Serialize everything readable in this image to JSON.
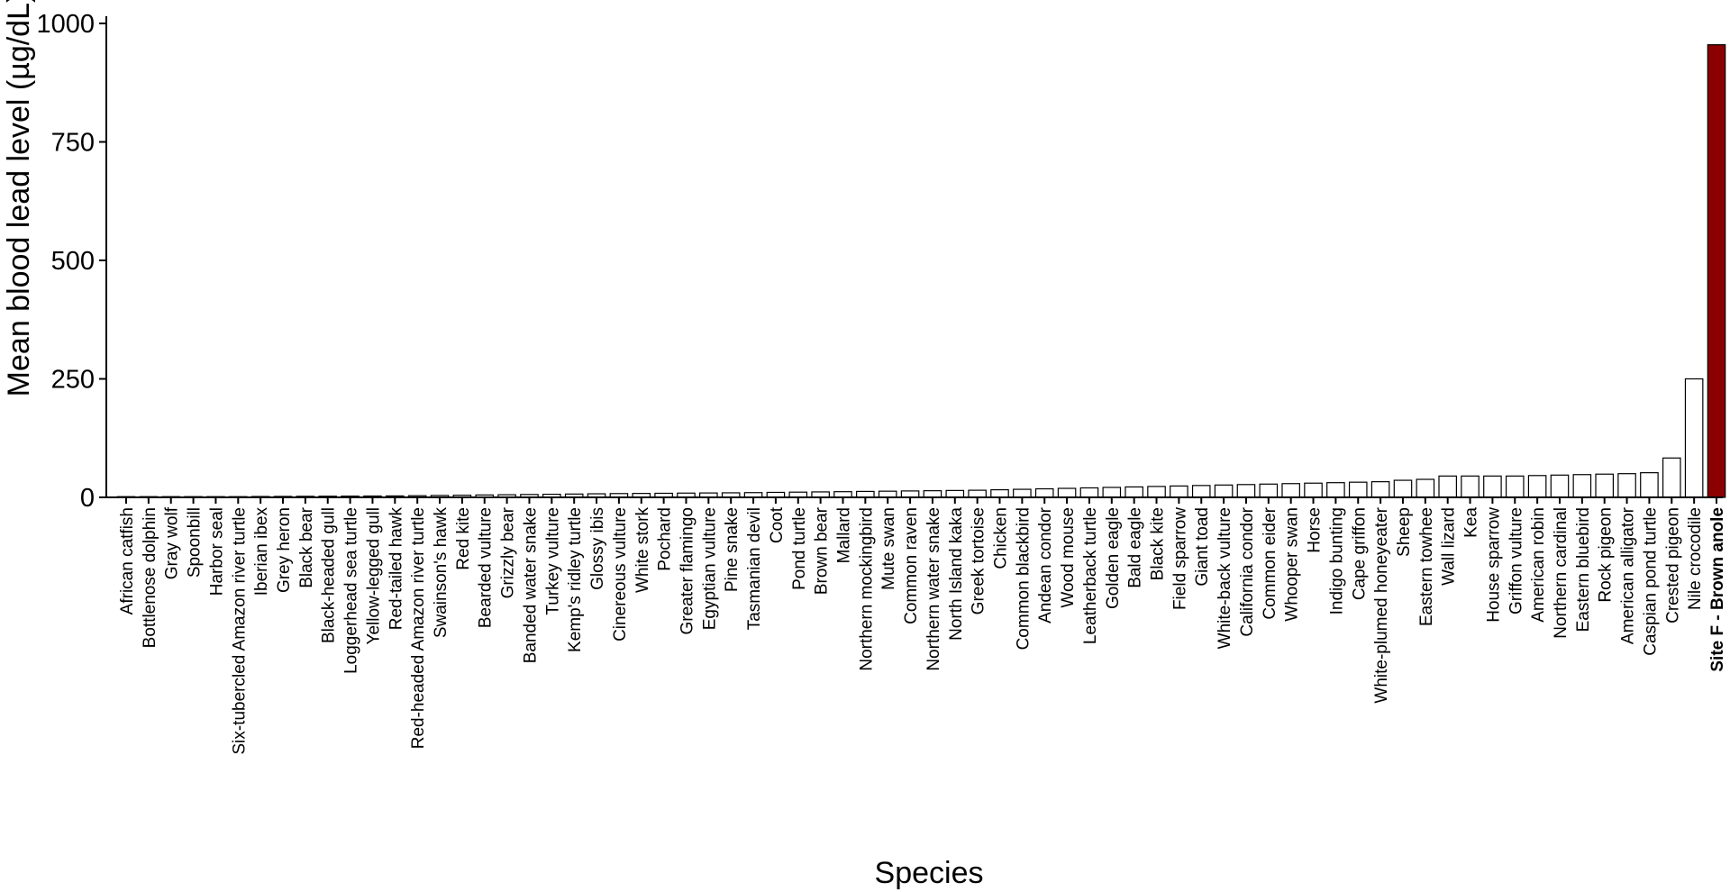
{
  "chart_data": {
    "type": "bar",
    "title": "",
    "xlabel": "Species",
    "ylabel": "Mean blood lead level (µg/dL)",
    "ylim": [
      0,
      1000
    ],
    "yticks": [
      0,
      250,
      500,
      750,
      1000
    ],
    "grid": false,
    "legend": "none",
    "colors": {
      "default_bar": "#ffffff",
      "highlight_bar": "#8b0000",
      "outline": "#000000"
    },
    "highlight_category": "Site F - Brown anole",
    "categories": [
      "African catfish",
      "Bottlenose dolphin",
      "Gray wolf",
      "Spoonbill",
      "Harbor seal",
      "Six-tubercled Amazon river turtle",
      "Iberian ibex",
      "Grey heron",
      "Black bear",
      "Black-headed gull",
      "Loggerhead sea turtle",
      "Yellow-legged gull",
      "Red-tailed hawk",
      "Red-headed Amazon river turtle",
      "Swainson's hawk",
      "Red kite",
      "Bearded vulture",
      "Grizzly bear",
      "Banded water snake",
      "Turkey vulture",
      "Kemp's ridley turtle",
      "Glossy ibis",
      "Cinereous vulture",
      "White stork",
      "Pochard",
      "Greater flamingo",
      "Egyptian vulture",
      "Pine snake",
      "Tasmanian devil",
      "Coot",
      "Pond turtle",
      "Brown bear",
      "Mallard",
      "Northern mockingbird",
      "Mute swan",
      "Common raven",
      "Northern water snake",
      "North Island kaka",
      "Greek tortoise",
      "Chicken",
      "Common blackbird",
      "Andean condor",
      "Wood mouse",
      "Leatherback turtle",
      "Golden eagle",
      "Bald eagle",
      "Black kite",
      "Field sparrow",
      "Giant toad",
      "White-back vulture",
      "California condor",
      "Common eider",
      "Whooper swan",
      "Horse",
      "Indigo bunting",
      "Cape griffon",
      "White-plumed honeyeater",
      "Sheep",
      "Eastern towhee",
      "Wall lizard",
      "Kea",
      "House sparrow",
      "Griffon vulture",
      "American robin",
      "Northern cardinal",
      "Eastern bluebird",
      "Rock pigeon",
      "American alligator",
      "Caspian pond turtle",
      "Crested pigeon",
      "Nile crocodile",
      "Site F - Brown anole"
    ],
    "values": [
      0.5,
      0.7,
      0.8,
      1,
      1.2,
      1.5,
      1.8,
      2,
      2.2,
      2.4,
      2.6,
      2.8,
      3,
      3.5,
      4,
      4.5,
      5,
      5.5,
      6,
      6.5,
      7,
      7.5,
      8,
      8.3,
      8.6,
      9,
      9.3,
      9.6,
      10,
      10.5,
      11,
      11.5,
      12,
      12.5,
      13,
      13.5,
      14,
      14.5,
      15,
      16,
      17,
      18,
      19,
      20,
      21,
      22,
      23,
      24,
      25,
      26,
      27,
      28,
      29,
      30,
      31,
      32,
      33,
      36,
      38,
      45,
      45,
      45,
      45,
      46,
      47,
      48,
      49,
      50,
      52,
      83,
      250,
      955
    ]
  }
}
